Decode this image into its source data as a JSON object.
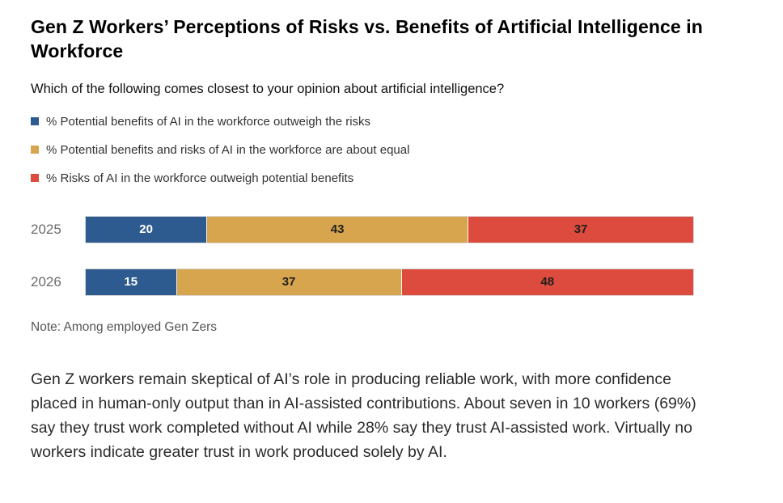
{
  "page": {
    "title": "Gen Z Workers’ Perceptions of Risks vs. Benefits of Artificial Intelligence in Workforce",
    "question": "Which of the following comes closest to your opinion about artificial intelligence?",
    "note": "Note: Among employed Gen Zers",
    "body_paragraph": "Gen Z workers remain skeptical of AI’s role in producing reliable work, with more confidence placed in human-only output than in AI-assisted contributions. About seven in 10 workers (69%) say they trust work completed without AI while 28% say they trust AI-assisted work. Virtually no workers indicate greater trust in work produced solely by AI."
  },
  "chart_data": {
    "type": "bar",
    "orientation": "horizontal",
    "stacked": true,
    "title": "Gen Z Workers’ Perceptions of Risks vs. Benefits of Artificial Intelligence in Workforce",
    "subtitle": "Which of the following comes closest to your opinion about artificial intelligence?",
    "categories": [
      "2025",
      "2026"
    ],
    "series": [
      {
        "name": "% Potential benefits of AI in the workforce outweigh the risks",
        "color": "#2E5B8F",
        "label_color": "#ffffff",
        "values": [
          20,
          15
        ]
      },
      {
        "name": "% Potential benefits and risks of AI in the workforce are about equal",
        "color": "#D7A54D",
        "label_color": "#1f1f1f",
        "values": [
          43,
          37
        ]
      },
      {
        "name": "% Risks of AI in the workforce outweigh potential benefits",
        "color": "#DC4B3D",
        "label_color": "#1f1f1f",
        "values": [
          37,
          48
        ]
      }
    ],
    "xlim": [
      0,
      100
    ],
    "grid": false,
    "legend_position": "top-left-vertical",
    "data_labels": true,
    "note": "Note: Among employed Gen Zers"
  }
}
